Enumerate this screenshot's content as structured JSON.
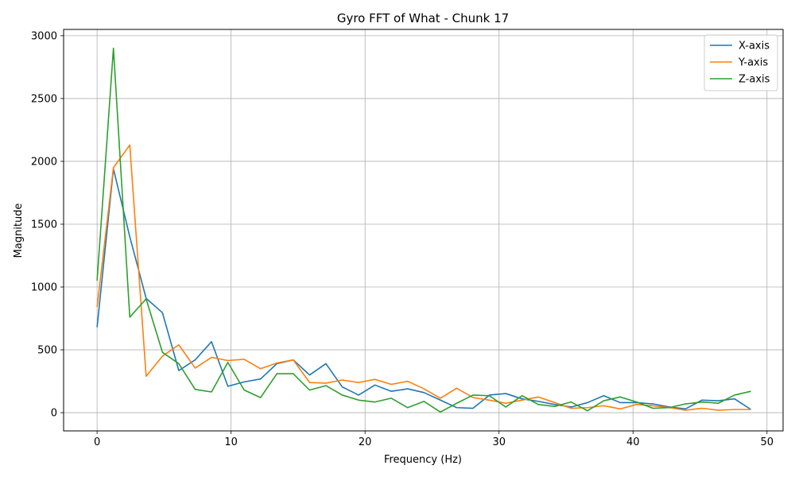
{
  "chart_data": {
    "type": "line",
    "title": "Gyro FFT of What - Chunk 17",
    "xlabel": "Frequency (Hz)",
    "ylabel": "Magnitude",
    "xlim": [
      -2.5,
      51.2
    ],
    "ylim": [
      -145,
      3050
    ],
    "xticks": [
      0,
      10,
      20,
      30,
      40,
      50
    ],
    "yticks": [
      0,
      500,
      1000,
      1500,
      2000,
      2500,
      3000
    ],
    "grid": true,
    "legend_position": "upper-right",
    "x": [
      0,
      1.22,
      2.44,
      3.66,
      4.88,
      6.1,
      7.32,
      8.54,
      9.76,
      10.98,
      12.2,
      13.42,
      14.64,
      15.86,
      17.08,
      18.3,
      19.52,
      20.74,
      21.96,
      23.18,
      24.4,
      25.62,
      26.84,
      28.06,
      29.28,
      30.5,
      31.72,
      32.94,
      34.16,
      35.38,
      36.6,
      37.82,
      39.04,
      40.26,
      41.48,
      42.7,
      43.92,
      45.14,
      46.36,
      47.58,
      48.8
    ],
    "series": [
      {
        "name": "X-axis",
        "color": "#1f77b4",
        "values": [
          680,
          1940,
          1400,
          910,
          795,
          335,
          420,
          565,
          210,
          245,
          268,
          390,
          420,
          300,
          390,
          205,
          140,
          220,
          170,
          190,
          160,
          100,
          40,
          35,
          140,
          152,
          110,
          90,
          65,
          45,
          80,
          135,
          80,
          80,
          70,
          45,
          30,
          100,
          95,
          110,
          25
        ]
      },
      {
        "name": "Y-axis",
        "color": "#ff7f0e",
        "values": [
          840,
          1950,
          2130,
          290,
          450,
          540,
          355,
          440,
          415,
          425,
          350,
          395,
          420,
          240,
          235,
          260,
          240,
          265,
          225,
          250,
          190,
          115,
          195,
          120,
          100,
          75,
          100,
          125,
          80,
          35,
          40,
          55,
          30,
          65,
          55,
          40,
          20,
          35,
          20,
          25,
          25
        ]
      },
      {
        "name": "Z-axis",
        "color": "#2ca02c",
        "values": [
          1050,
          2900,
          760,
          905,
          480,
          390,
          185,
          165,
          400,
          180,
          120,
          310,
          310,
          180,
          215,
          140,
          100,
          85,
          115,
          40,
          90,
          5,
          75,
          140,
          135,
          45,
          135,
          65,
          50,
          85,
          15,
          95,
          125,
          85,
          35,
          40,
          70,
          85,
          75,
          140,
          170
        ]
      }
    ]
  }
}
